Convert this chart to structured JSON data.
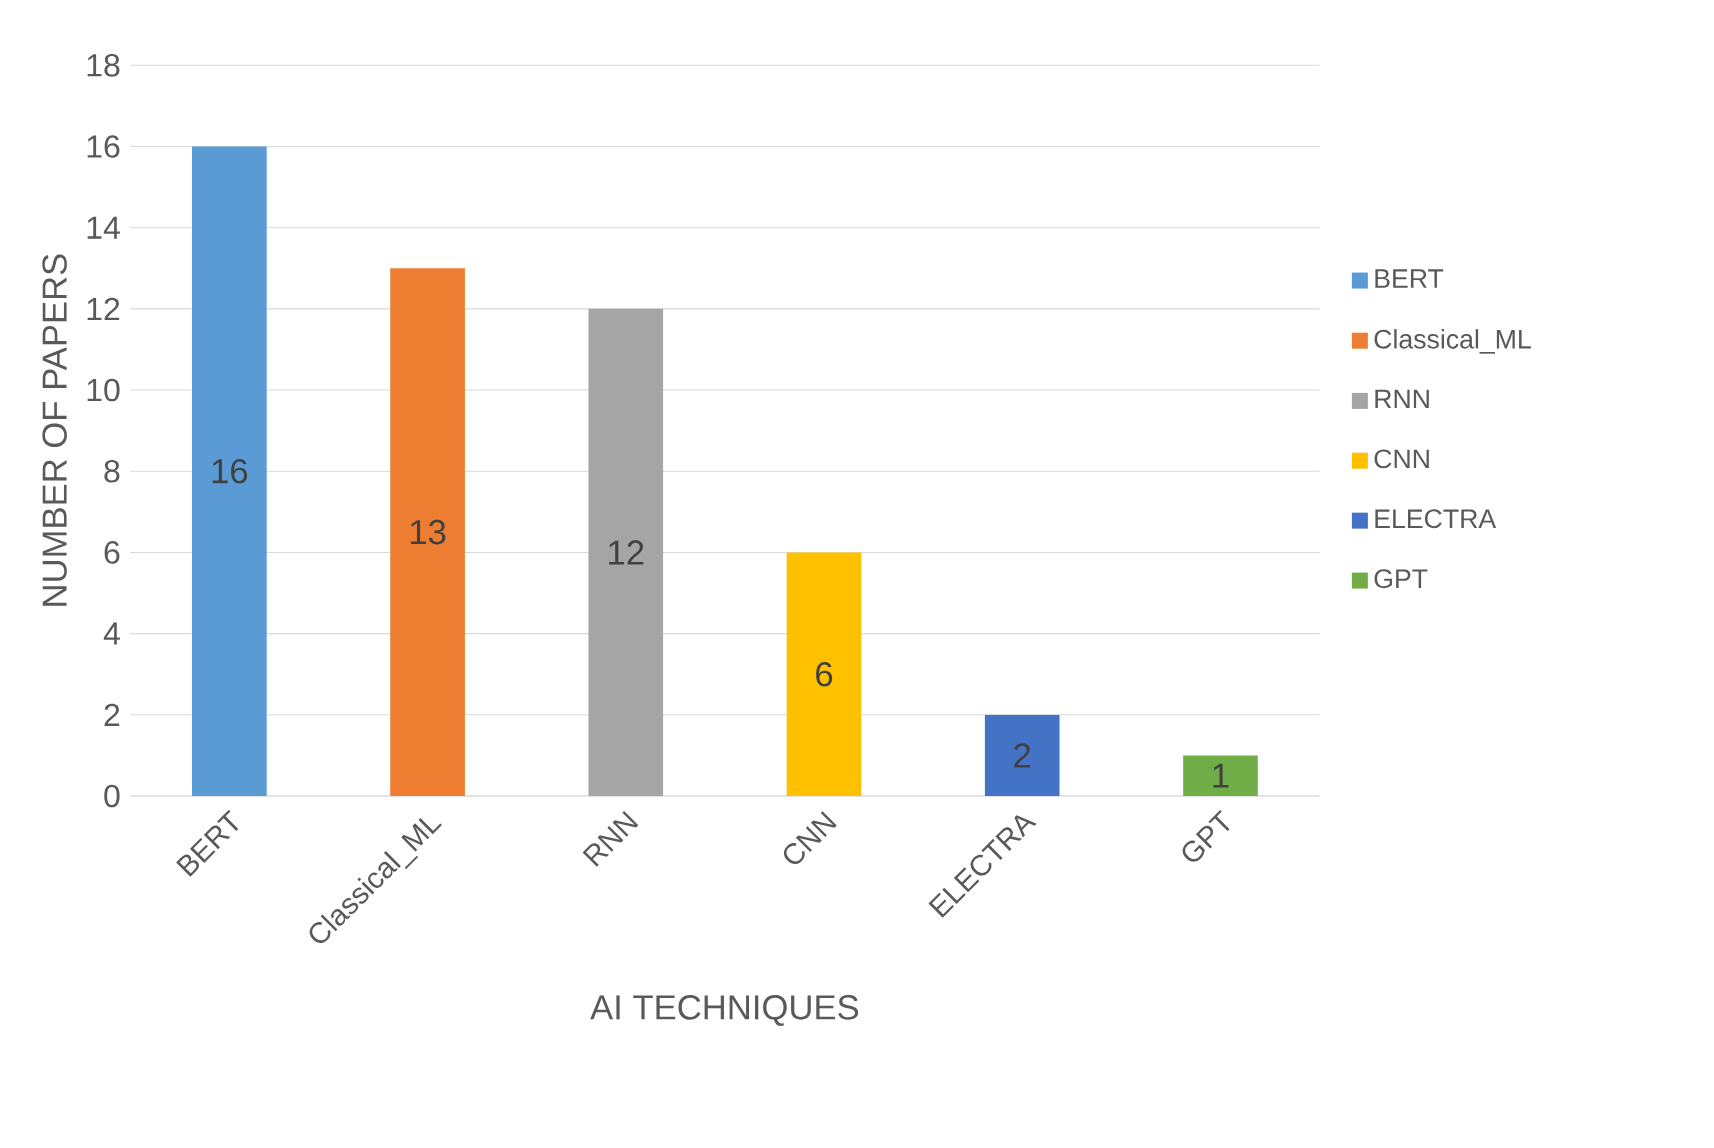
{
  "chart_data": {
    "type": "bar",
    "xlabel": "AI TECHNIQUES",
    "ylabel": "NUMBER OF PAPERS",
    "categories": [
      "BERT",
      "Classical_ML",
      "RNN",
      "CNN",
      "ELECTRA",
      "GPT"
    ],
    "series": [
      {
        "name": "BERT",
        "color": "#5b9bd5",
        "values": [
          16,
          null,
          null,
          null,
          null,
          null
        ]
      },
      {
        "name": "Classical_ML",
        "color": "#ed7d31",
        "values": [
          null,
          13,
          null,
          null,
          null,
          null
        ]
      },
      {
        "name": "RNN",
        "color": "#a5a5a5",
        "values": [
          null,
          null,
          12,
          null,
          null,
          null
        ]
      },
      {
        "name": "CNN",
        "color": "#ffc000",
        "values": [
          null,
          null,
          null,
          6,
          null,
          null
        ]
      },
      {
        "name": "ELECTRA",
        "color": "#4472c4",
        "values": [
          null,
          null,
          null,
          null,
          2,
          null
        ]
      },
      {
        "name": "GPT",
        "color": "#70ad47",
        "values": [
          null,
          null,
          null,
          null,
          null,
          1
        ]
      }
    ],
    "ylim": [
      0,
      18
    ],
    "yticks": [
      0,
      2,
      4,
      6,
      8,
      10,
      12,
      14,
      16,
      18
    ],
    "grid": "y",
    "legend": "right",
    "data_labels": true
  }
}
